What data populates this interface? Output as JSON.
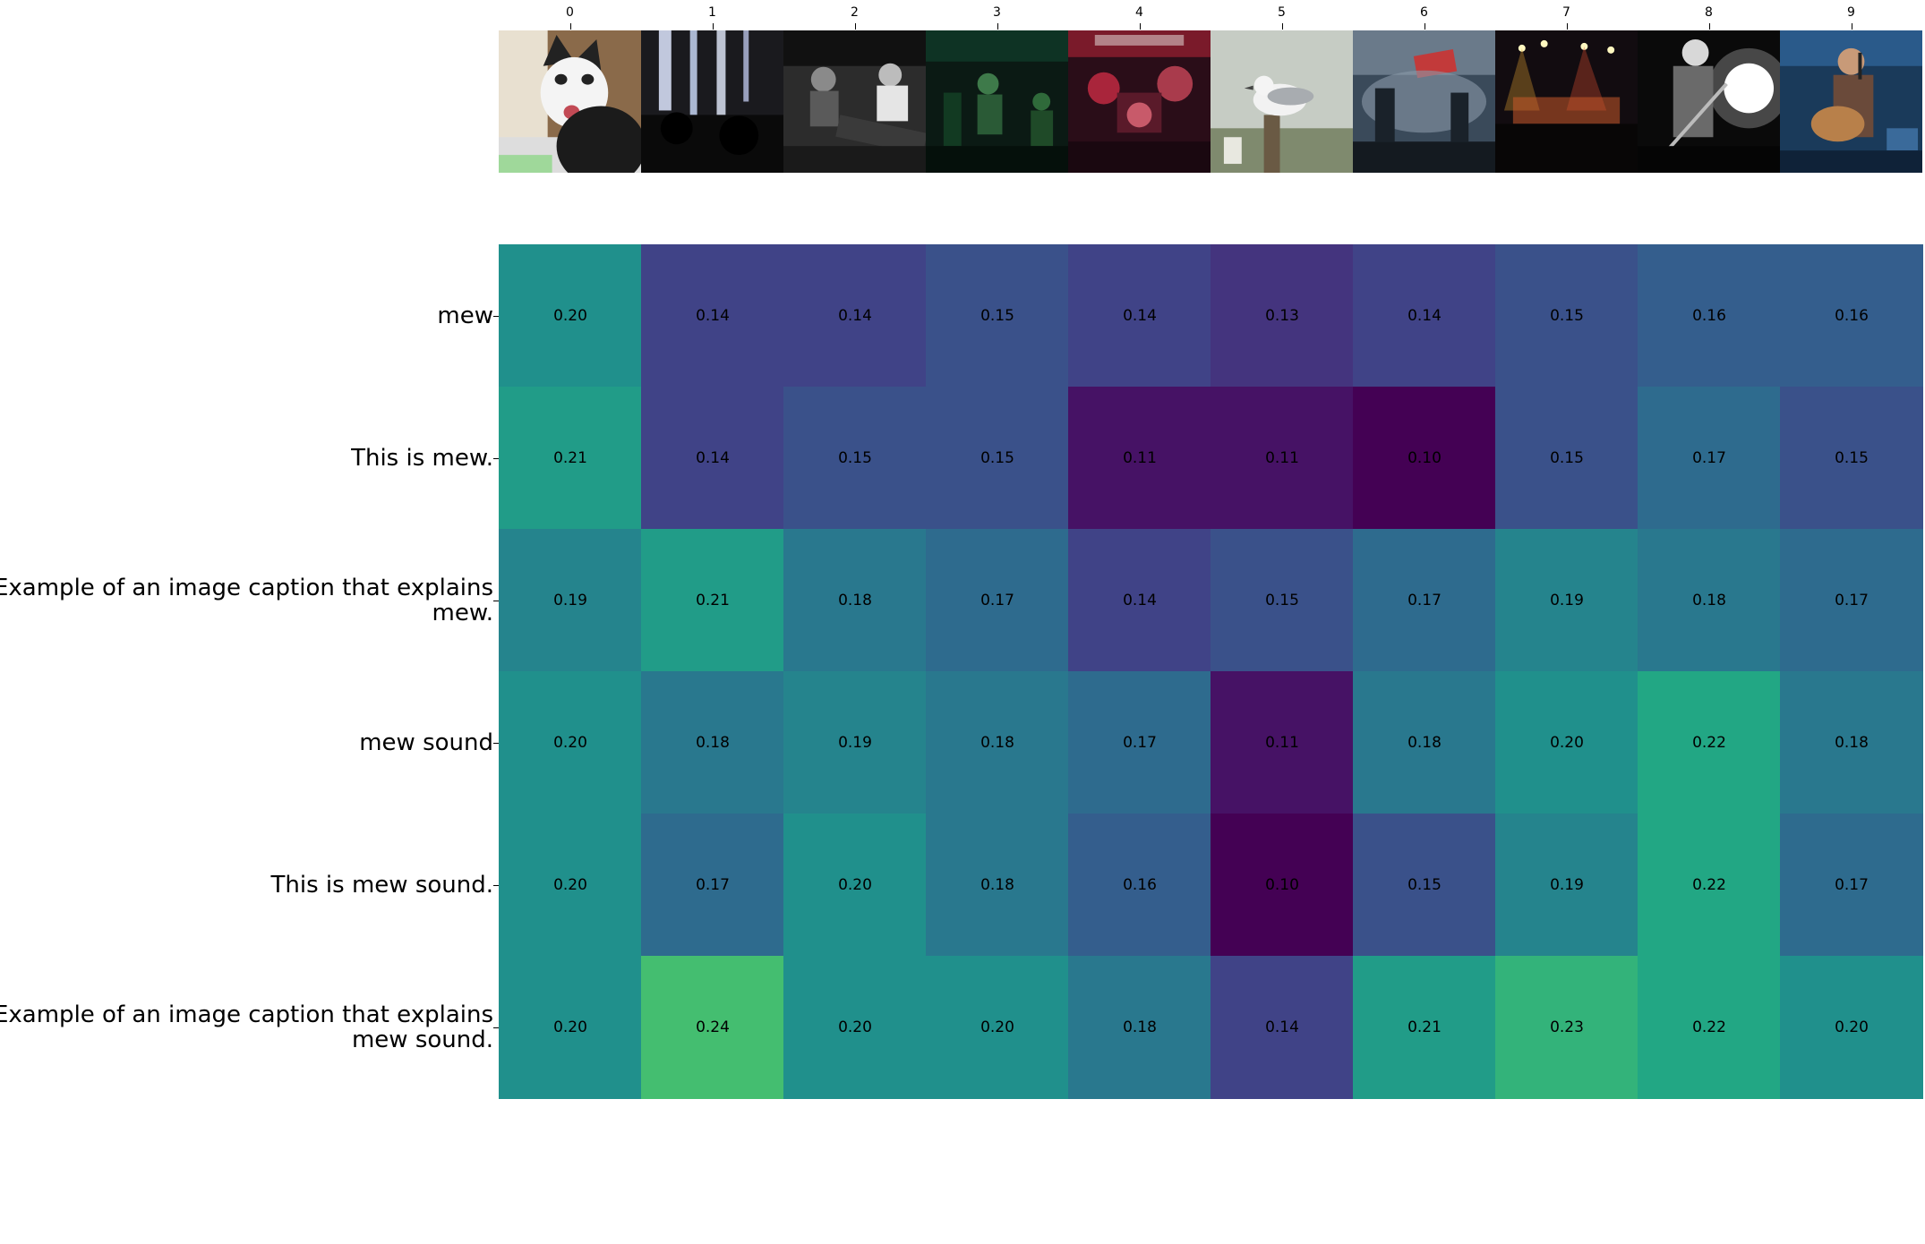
{
  "chart_data": {
    "type": "heatmap",
    "colormap": "viridis",
    "x_tick_labels": [
      "0",
      "1",
      "2",
      "3",
      "4",
      "5",
      "6",
      "7",
      "8",
      "9"
    ],
    "image_icons": [
      "cat-photo",
      "concert-stage-lights-photo",
      "band-keyboard-bw-photo",
      "band-green-stage-photo",
      "band-red-stage-photo",
      "seagull-photo",
      "concert-smoke-photo",
      "concert-crowd-lights-photo",
      "guitarist-bw-photo",
      "singer-guitar-photo"
    ],
    "y_tick_labels": [
      "mew",
      "This is mew.",
      "Example of an image caption that explains mew.",
      "mew sound",
      "This is mew sound.",
      "Example of an image caption that explains mew sound."
    ],
    "y_tick_label_lines": [
      [
        "mew"
      ],
      [
        "This is mew."
      ],
      [
        "Example of an image caption that explains",
        "mew."
      ],
      [
        "mew sound"
      ],
      [
        "This is mew sound."
      ],
      [
        "Example of an image caption that explains",
        "mew sound."
      ]
    ],
    "values": [
      [
        0.2,
        0.14,
        0.14,
        0.15,
        0.14,
        0.13,
        0.14,
        0.15,
        0.16,
        0.16
      ],
      [
        0.21,
        0.14,
        0.15,
        0.15,
        0.11,
        0.11,
        0.1,
        0.15,
        0.17,
        0.15
      ],
      [
        0.19,
        0.21,
        0.18,
        0.17,
        0.14,
        0.15,
        0.17,
        0.19,
        0.18,
        0.17
      ],
      [
        0.2,
        0.18,
        0.19,
        0.18,
        0.17,
        0.11,
        0.18,
        0.2,
        0.22,
        0.18
      ],
      [
        0.2,
        0.17,
        0.2,
        0.18,
        0.16,
        0.1,
        0.15,
        0.19,
        0.22,
        0.17
      ],
      [
        0.2,
        0.24,
        0.2,
        0.2,
        0.18,
        0.14,
        0.21,
        0.23,
        0.22,
        0.2
      ]
    ],
    "value_format": "2 decimals",
    "title": "",
    "xlabel": "",
    "ylabel": "",
    "colorbar": false,
    "grid": false
  }
}
